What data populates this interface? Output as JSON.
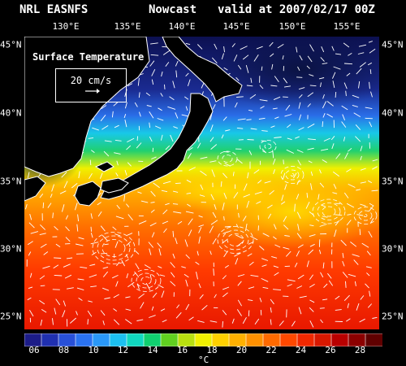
{
  "header": {
    "source": "NRL EASNFS",
    "product": "Nowcast",
    "valid": "valid at 2007/02/17 00Z"
  },
  "map": {
    "title": "Surface Temperature",
    "vector_reference": "20 cm/s",
    "lon_labels": [
      "130°E",
      "135°E",
      "140°E",
      "145°E",
      "150°E",
      "155°E"
    ],
    "lat_labels": [
      "45°N",
      "40°N",
      "35°N",
      "30°N",
      "25°N"
    ],
    "colors": {
      "background": "#000000",
      "land": "#000000",
      "coast": "#ffffff",
      "vectors": "#ffffff"
    }
  },
  "colorbar": {
    "ticks": [
      "06",
      "08",
      "10",
      "12",
      "14",
      "16",
      "18",
      "20",
      "22",
      "24",
      "26",
      "28"
    ],
    "unit": "°C",
    "colors": [
      "#1c1c88",
      "#2030b0",
      "#2850d8",
      "#2a72f0",
      "#2a98f8",
      "#1cc0f0",
      "#10d8c0",
      "#10d070",
      "#60d020",
      "#b8e010",
      "#f0f000",
      "#ffd000",
      "#ffb000",
      "#ff9000",
      "#ff6a00",
      "#ff4800",
      "#f02800",
      "#d81800",
      "#b80000",
      "#8c0000",
      "#600000"
    ]
  }
}
